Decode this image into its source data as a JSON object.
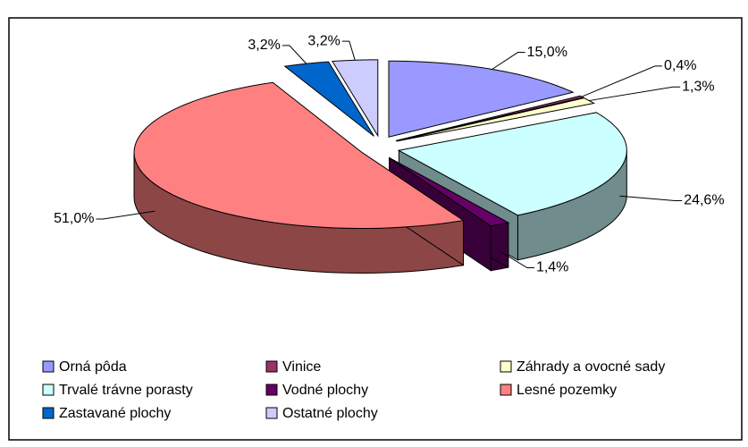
{
  "chart_data": {
    "type": "pie",
    "categories": [
      "Orná pôda",
      "Vinice",
      "Záhrady a ovocné sady",
      "Trvalé trávne porasty",
      "Vodné plochy",
      "Lesné pozemky",
      "Zastavané plochy",
      "Ostatné plochy"
    ],
    "values": [
      15.0,
      0.4,
      1.3,
      24.6,
      1.4,
      51.0,
      3.2,
      3.2
    ],
    "value_labels": [
      "15,0%",
      "0,4%",
      "1,3%",
      "24,6%",
      "1,4%",
      "51,0%",
      "3,2%",
      "3,2%"
    ],
    "colors": [
      "#9999ff",
      "#993366",
      "#ffffcc",
      "#ccffff",
      "#660066",
      "#ff8080",
      "#0066cc",
      "#ccccff"
    ],
    "legend": "bottom"
  }
}
